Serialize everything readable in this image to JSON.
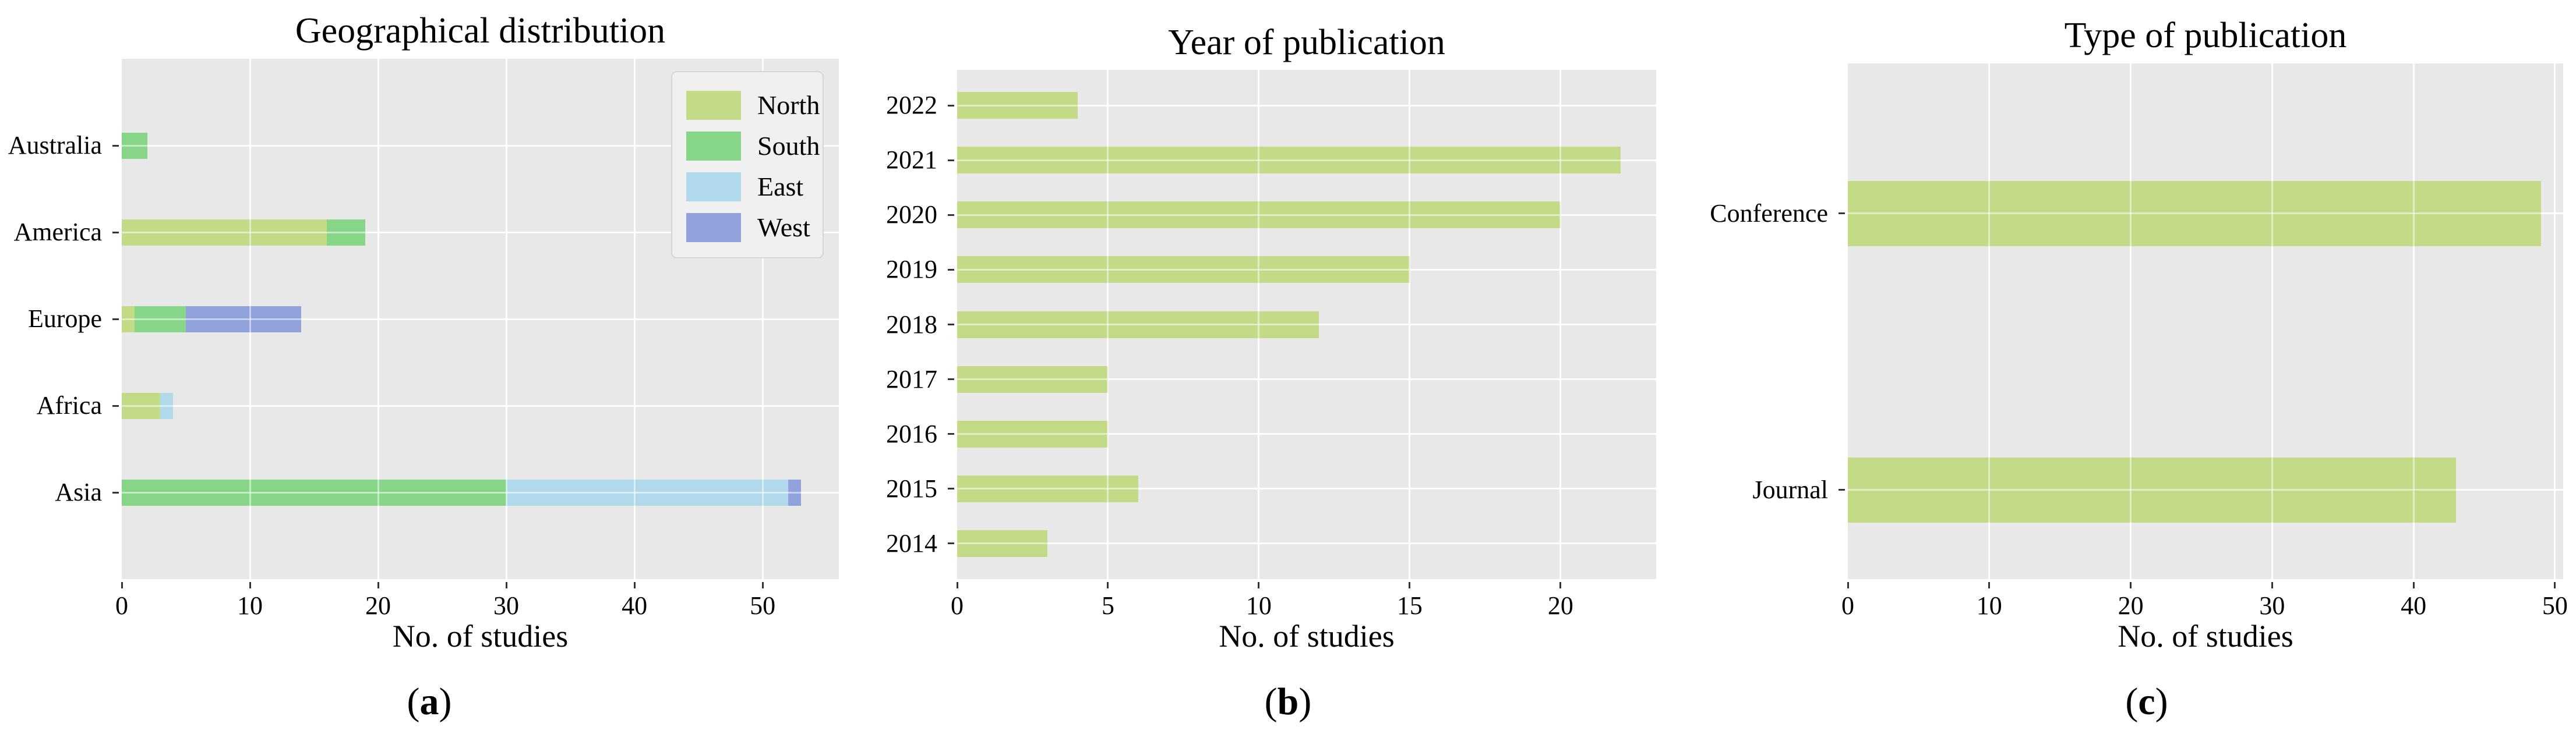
{
  "figure": {
    "background": "#ffffff",
    "panel_bg": "#e8e8e8",
    "grid_color": "#ffffff",
    "text_color": "#000000",
    "tick_color": "#333333",
    "legend_bg": "#f0f0f0",
    "legend_border": "#d5d5d5",
    "series_colors": {
      "North": "#c3da87",
      "South": "#87d687",
      "East": "#b0daeb",
      "West": "#90a1dc"
    }
  },
  "chart_data": [
    {
      "type": "bar",
      "orientation": "horizontal",
      "stacked": true,
      "title": "Geographical distribution",
      "xlabel": "No. of studies",
      "ylabel": "",
      "caption": "(a)",
      "grid": true,
      "legend_position": "upper right",
      "categories": [
        "Australia",
        "America",
        "Europe",
        "Africa",
        "Asia"
      ],
      "series": [
        {
          "name": "North",
          "values": [
            0,
            16,
            1,
            3,
            0
          ]
        },
        {
          "name": "South",
          "values": [
            2,
            3,
            4,
            0,
            30
          ]
        },
        {
          "name": "East",
          "values": [
            0,
            0,
            0,
            1,
            22
          ]
        },
        {
          "name": "West",
          "values": [
            0,
            0,
            9,
            0,
            1
          ]
        }
      ],
      "totals": [
        2,
        19,
        14,
        4,
        53
      ],
      "xticks": [
        0,
        10,
        20,
        30,
        40,
        50
      ],
      "xlim": [
        0,
        55.95
      ],
      "legend": {
        "entries": [
          "North",
          "South",
          "East",
          "West"
        ]
      }
    },
    {
      "type": "bar",
      "orientation": "horizontal",
      "stacked": false,
      "title": "Year of publication",
      "xlabel": "No. of studies",
      "ylabel": "",
      "caption": "(b)",
      "grid": true,
      "categories": [
        "2022",
        "2021",
        "2020",
        "2019",
        "2018",
        "2017",
        "2016",
        "2015",
        "2014"
      ],
      "series": [
        {
          "name": "North",
          "values": [
            4,
            22,
            20,
            15,
            12,
            5,
            5,
            6,
            3
          ]
        }
      ],
      "xticks": [
        0,
        5,
        10,
        15,
        20
      ],
      "xlim": [
        0,
        23.17
      ]
    },
    {
      "type": "bar",
      "orientation": "horizontal",
      "stacked": false,
      "title": "Type of publication",
      "xlabel": "No. of studies",
      "ylabel": "",
      "caption": "(c)",
      "grid": true,
      "categories": [
        "Conference",
        "Journal"
      ],
      "series": [
        {
          "name": "North",
          "values": [
            49,
            43
          ]
        }
      ],
      "xticks": [
        0,
        10,
        20,
        30,
        40,
        50
      ],
      "xlim": [
        0,
        50.58
      ]
    }
  ]
}
